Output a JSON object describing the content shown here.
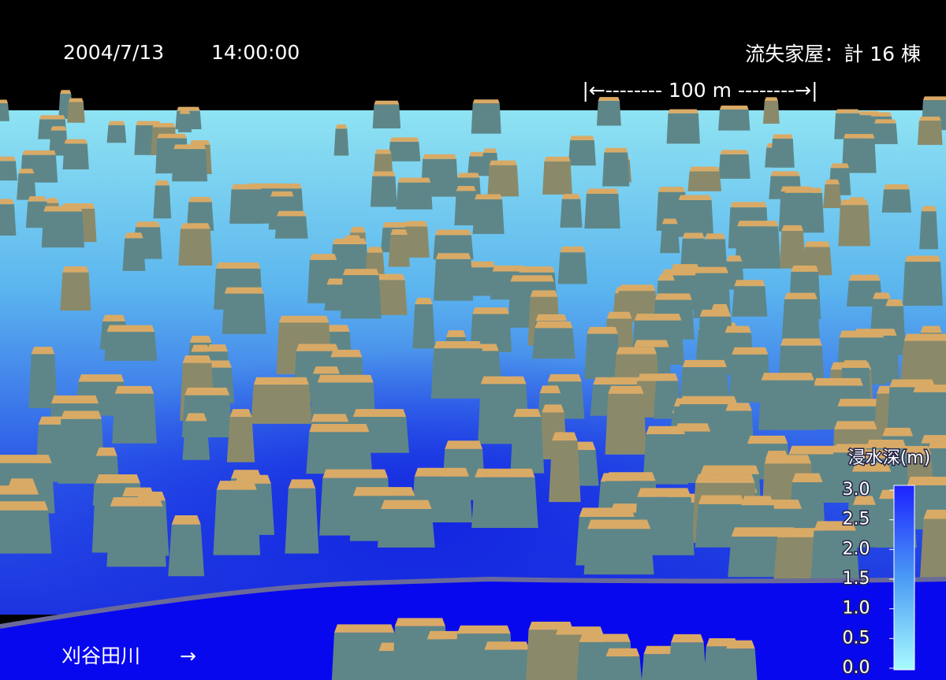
{
  "overlay": {
    "date": "2004/7/13",
    "time": "14:00:00",
    "houses_lost": "流失家屋：計 16 棟",
    "scale_bar": "|←-------- 100 m --------→|",
    "river": "刈谷田川",
    "river_arrow": "→"
  },
  "legend": {
    "title": "浸水深(m)",
    "range": [
      0,
      3
    ],
    "ticks": [
      {
        "value": 3,
        "label": "3.0"
      },
      {
        "value": 2.5,
        "label": "2.5"
      },
      {
        "value": 2,
        "label": "2.0"
      },
      {
        "value": 1.5,
        "label": "1.5"
      },
      {
        "value": 1,
        "label": "1.0"
      },
      {
        "value": 0.5,
        "label": "0.5"
      },
      {
        "value": 0,
        "label": "0.0"
      }
    ]
  }
}
